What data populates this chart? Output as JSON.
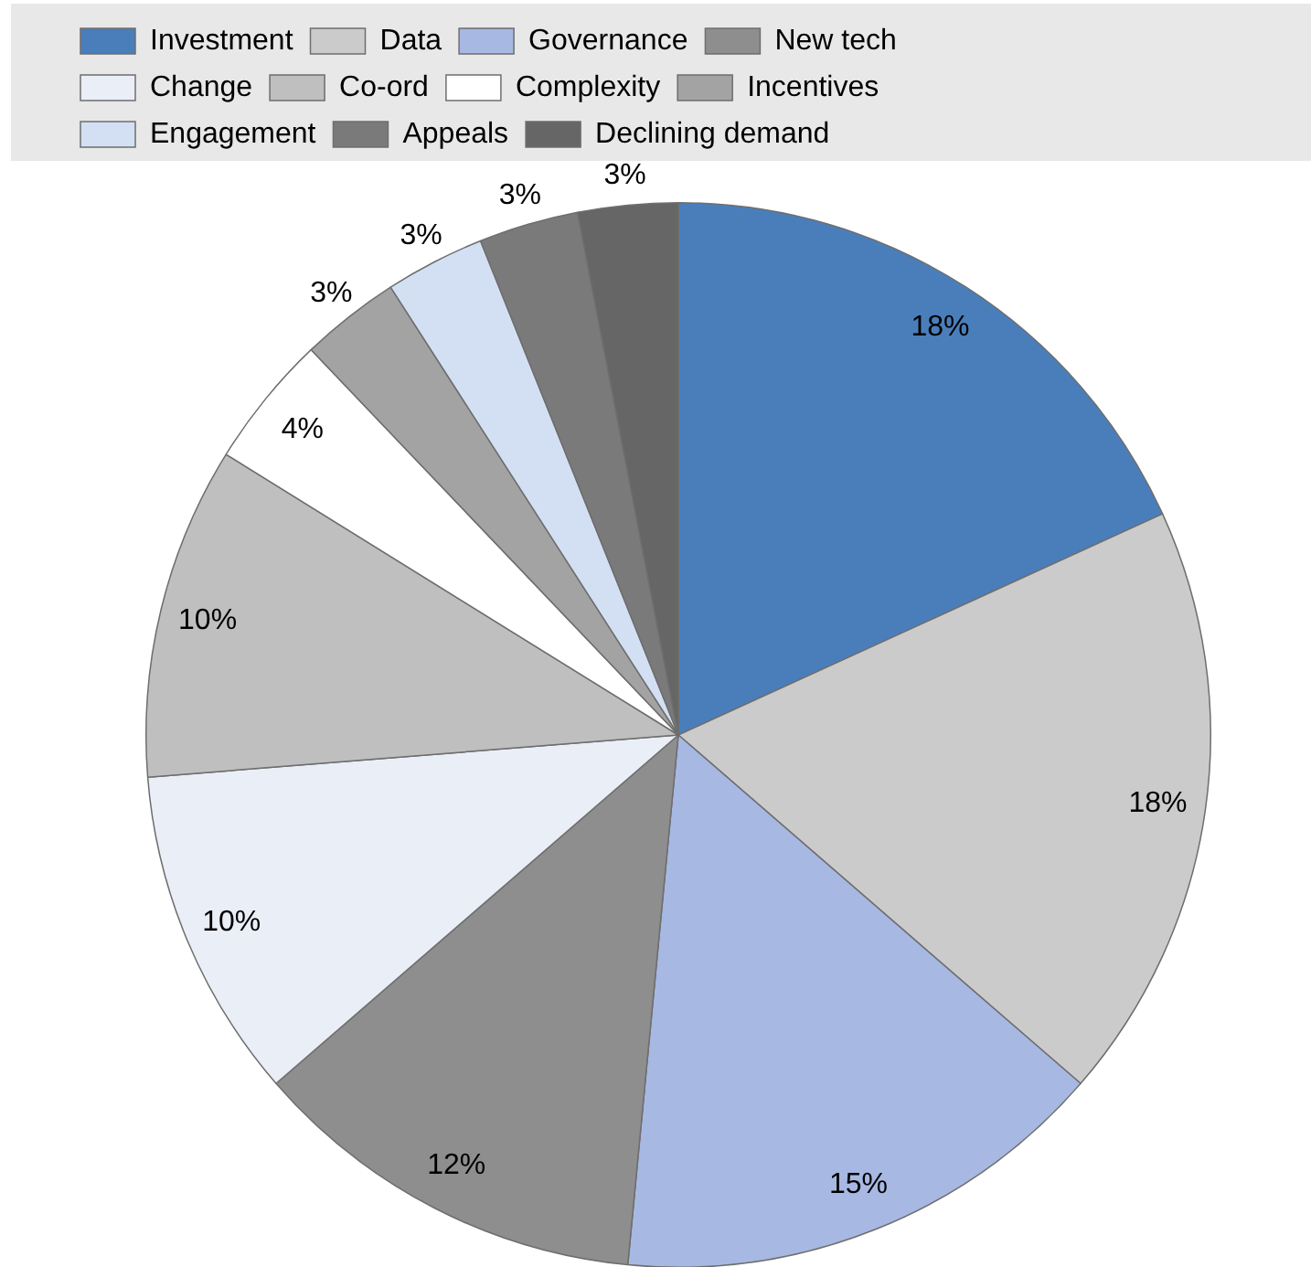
{
  "chart_data": {
    "type": "pie",
    "categories": [
      "Investment",
      "Data",
      "Governance",
      "New tech",
      "Change",
      "Co-ord",
      "Complexity",
      "Incentives",
      "Engagement",
      "Appeals",
      "Declining demand"
    ],
    "values": [
      18,
      18,
      15,
      12,
      10,
      10,
      4,
      3,
      3,
      3,
      3
    ],
    "colors": [
      "#4a7ebb",
      "#cbcbcb",
      "#a7b8e2",
      "#8e8e8e",
      "#eaeef7",
      "#bfbfbf",
      "#ffffff",
      "#a3a3a3",
      "#d3e0f4",
      "#7a7a7a",
      "#666666"
    ],
    "value_labels": [
      "18%",
      "18%",
      "15%",
      "12%",
      "10%",
      "10%",
      "4%",
      "3%",
      "3%",
      "3%",
      "3%"
    ],
    "legend": "top"
  }
}
